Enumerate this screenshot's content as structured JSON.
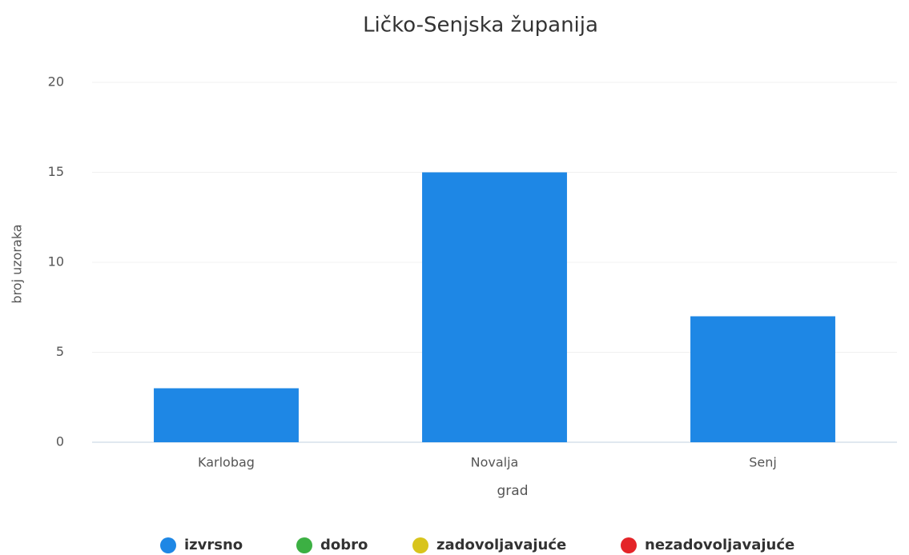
{
  "chart_data": {
    "type": "bar",
    "title": "Ličko-Senjska županija",
    "x_label": "grad",
    "y_label": "broj uzoraka",
    "categories": [
      "Karlobag",
      "Novalja",
      "Senj"
    ],
    "series": [
      {
        "name": "izvrsno",
        "color": "#1e87e5",
        "values": [
          3,
          15,
          7
        ]
      },
      {
        "name": "dobro",
        "color": "#3cb043",
        "values": [
          0,
          0,
          0
        ]
      },
      {
        "name": "zadovoljavajuće",
        "color": "#d8c41c",
        "values": [
          0,
          0,
          0
        ]
      },
      {
        "name": "nezadovoljavajuće",
        "color": "#e42428",
        "values": [
          0,
          0,
          0
        ]
      }
    ],
    "stacked": true,
    "ylim": [
      0,
      20
    ],
    "yticks": [
      0,
      5,
      10,
      15,
      20
    ],
    "grid": true,
    "legend": "bottom"
  }
}
